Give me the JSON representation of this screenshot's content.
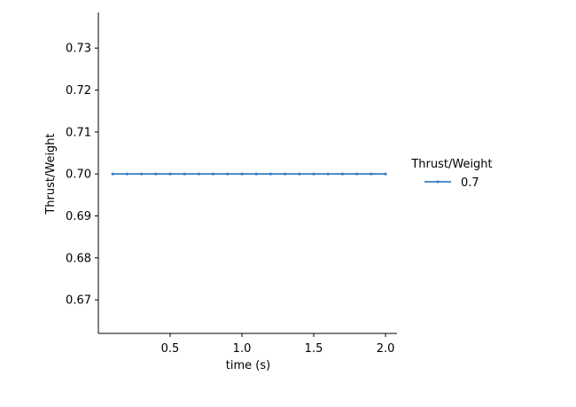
{
  "chart_data": {
    "type": "line",
    "title": "",
    "xlabel": "time (s)",
    "ylabel": "Thrust/Weight",
    "xlim": [
      0.0,
      2.08
    ],
    "ylim": [
      0.662,
      0.7385
    ],
    "xticks": [
      0.5,
      1.0,
      1.5,
      2.0
    ],
    "xtick_labels": [
      "0.5",
      "1.0",
      "1.5",
      "2.0"
    ],
    "yticks": [
      0.67,
      0.68,
      0.69,
      0.7,
      0.71,
      0.72,
      0.73
    ],
    "ytick_labels": [
      "0.67",
      "0.68",
      "0.69",
      "0.70",
      "0.71",
      "0.72",
      "0.73"
    ],
    "grid": false,
    "legend": {
      "title": "Thrust/Weight",
      "placement": "right"
    },
    "series": [
      {
        "name": "0.7",
        "color": "#3a7fc2",
        "marker": "dot",
        "x": [
          0.1,
          0.2,
          0.3,
          0.4,
          0.5,
          0.6,
          0.7,
          0.8,
          0.9,
          1.0,
          1.1,
          1.2,
          1.3,
          1.4,
          1.5,
          1.6,
          1.7,
          1.8,
          1.9,
          2.0
        ],
        "y": [
          0.7,
          0.7,
          0.7,
          0.7,
          0.7,
          0.7,
          0.7,
          0.7,
          0.7,
          0.7,
          0.7,
          0.7,
          0.7,
          0.7,
          0.7,
          0.7,
          0.7,
          0.7,
          0.7,
          0.7
        ]
      }
    ]
  }
}
